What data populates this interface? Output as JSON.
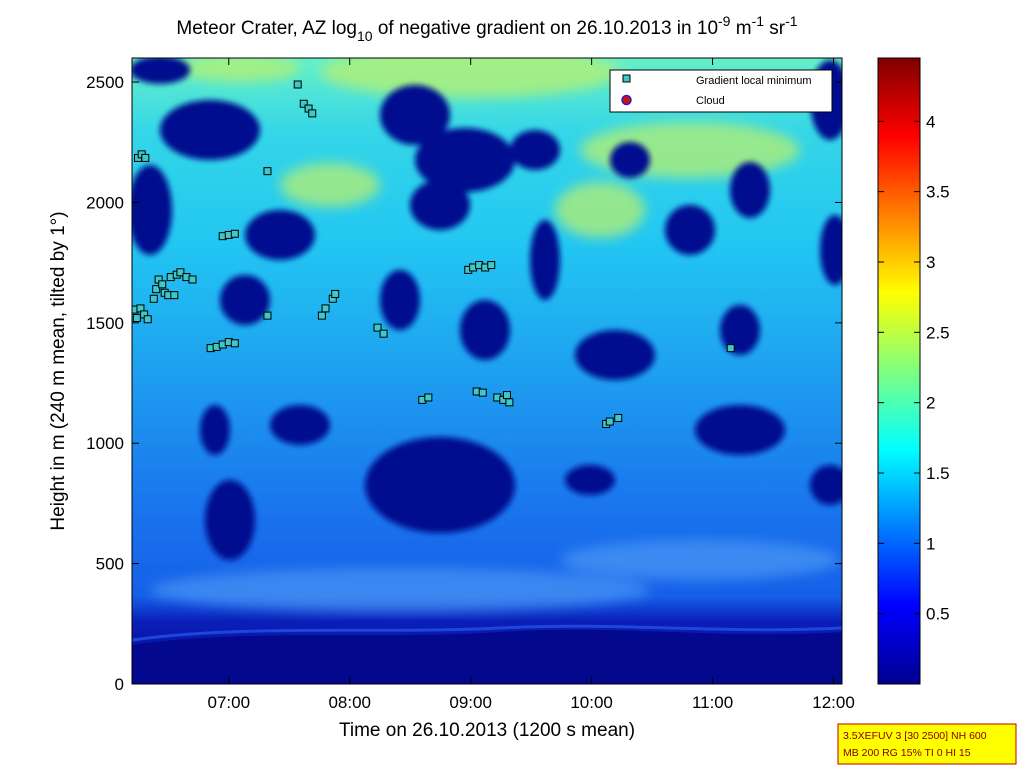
{
  "chart_data": {
    "type": "heatmap",
    "title": {
      "base": "Meteor Crater, AZ log",
      "base_sub": "10",
      "middle": " of negative gradient on 26.10.2013 in 10",
      "exp1": "-9",
      "unit1": " m",
      "exp2": "-1",
      "unit2": " sr",
      "exp3": "-1"
    },
    "xlabel": "Time on 26.10.2013 (1200 s mean)",
    "ylabel": "Height in m (240 m mean, tilted by 1°)",
    "x_tick_labels": [
      "07:00",
      "08:00",
      "09:00",
      "10:00",
      "11:00",
      "12:00"
    ],
    "x_tick_hours": [
      7,
      8,
      9,
      10,
      11,
      12
    ],
    "xlim_hours": [
      6.2,
      12.07
    ],
    "y_ticks": [
      0,
      500,
      1000,
      1500,
      2000,
      2500
    ],
    "y_tick_labels": [
      "0",
      "500",
      "1000",
      "1500",
      "2000",
      "2500"
    ],
    "ylim": [
      0,
      2600
    ],
    "colorbar": {
      "colormap": "jet",
      "range": [
        0,
        4.45
      ],
      "ticks": [
        0.5,
        1,
        1.5,
        2,
        2.5,
        3,
        3.5,
        4
      ],
      "tick_labels": [
        "0.5",
        "1",
        "1.5",
        "2",
        "2.5",
        "3",
        "3.5",
        "4"
      ]
    },
    "legend": {
      "placement": "top-right",
      "entries": [
        {
          "label": "Gradient local minimum",
          "marker": "square",
          "color": "#3ec8c8"
        },
        {
          "label": "Cloud",
          "marker": "circle",
          "color": "#d01010"
        }
      ]
    },
    "series": [
      {
        "name": "Gradient local minimum",
        "points": [
          {
            "t": 6.22,
            "h": 1555
          },
          {
            "t": 6.24,
            "h": 1520
          },
          {
            "t": 6.27,
            "h": 1560
          },
          {
            "t": 6.3,
            "h": 1535
          },
          {
            "t": 6.33,
            "h": 1515
          },
          {
            "t": 6.25,
            "h": 2185
          },
          {
            "t": 6.28,
            "h": 2200
          },
          {
            "t": 6.31,
            "h": 2185
          },
          {
            "t": 6.38,
            "h": 1600
          },
          {
            "t": 6.4,
            "h": 1640
          },
          {
            "t": 6.42,
            "h": 1680
          },
          {
            "t": 6.45,
            "h": 1660
          },
          {
            "t": 6.47,
            "h": 1625
          },
          {
            "t": 6.5,
            "h": 1615
          },
          {
            "t": 6.52,
            "h": 1690
          },
          {
            "t": 6.55,
            "h": 1615
          },
          {
            "t": 6.57,
            "h": 1700
          },
          {
            "t": 6.6,
            "h": 1710
          },
          {
            "t": 6.65,
            "h": 1690
          },
          {
            "t": 6.7,
            "h": 1680
          },
          {
            "t": 6.85,
            "h": 1395
          },
          {
            "t": 6.9,
            "h": 1400
          },
          {
            "t": 6.95,
            "h": 1410
          },
          {
            "t": 7.0,
            "h": 1420
          },
          {
            "t": 7.05,
            "h": 1415
          },
          {
            "t": 6.95,
            "h": 1860
          },
          {
            "t": 7.0,
            "h": 1865
          },
          {
            "t": 7.05,
            "h": 1870
          },
          {
            "t": 7.32,
            "h": 1530
          },
          {
            "t": 7.32,
            "h": 2130
          },
          {
            "t": 7.57,
            "h": 2490
          },
          {
            "t": 7.62,
            "h": 2410
          },
          {
            "t": 7.66,
            "h": 2390
          },
          {
            "t": 7.69,
            "h": 2370
          },
          {
            "t": 7.77,
            "h": 1530
          },
          {
            "t": 7.8,
            "h": 1560
          },
          {
            "t": 7.86,
            "h": 1600
          },
          {
            "t": 7.88,
            "h": 1620
          },
          {
            "t": 8.23,
            "h": 1480
          },
          {
            "t": 8.28,
            "h": 1455
          },
          {
            "t": 8.6,
            "h": 1180
          },
          {
            "t": 8.65,
            "h": 1190
          },
          {
            "t": 8.98,
            "h": 1720
          },
          {
            "t": 9.02,
            "h": 1730
          },
          {
            "t": 9.07,
            "h": 1740
          },
          {
            "t": 9.12,
            "h": 1730
          },
          {
            "t": 9.17,
            "h": 1740
          },
          {
            "t": 9.05,
            "h": 1215
          },
          {
            "t": 9.1,
            "h": 1210
          },
          {
            "t": 9.22,
            "h": 1190
          },
          {
            "t": 9.27,
            "h": 1180
          },
          {
            "t": 9.3,
            "h": 1200
          },
          {
            "t": 9.32,
            "h": 1170
          },
          {
            "t": 10.12,
            "h": 1080
          },
          {
            "t": 10.15,
            "h": 1090
          },
          {
            "t": 10.22,
            "h": 1105
          },
          {
            "t": 11.15,
            "h": 1395
          }
        ]
      },
      {
        "name": "Cloud",
        "points": []
      }
    ],
    "grid": false
  },
  "info_box": {
    "line1": "3.5XEFUV 3 [30 2500] NH 600",
    "line2": "MB 200 RG 15% TI 0 HI 15"
  }
}
